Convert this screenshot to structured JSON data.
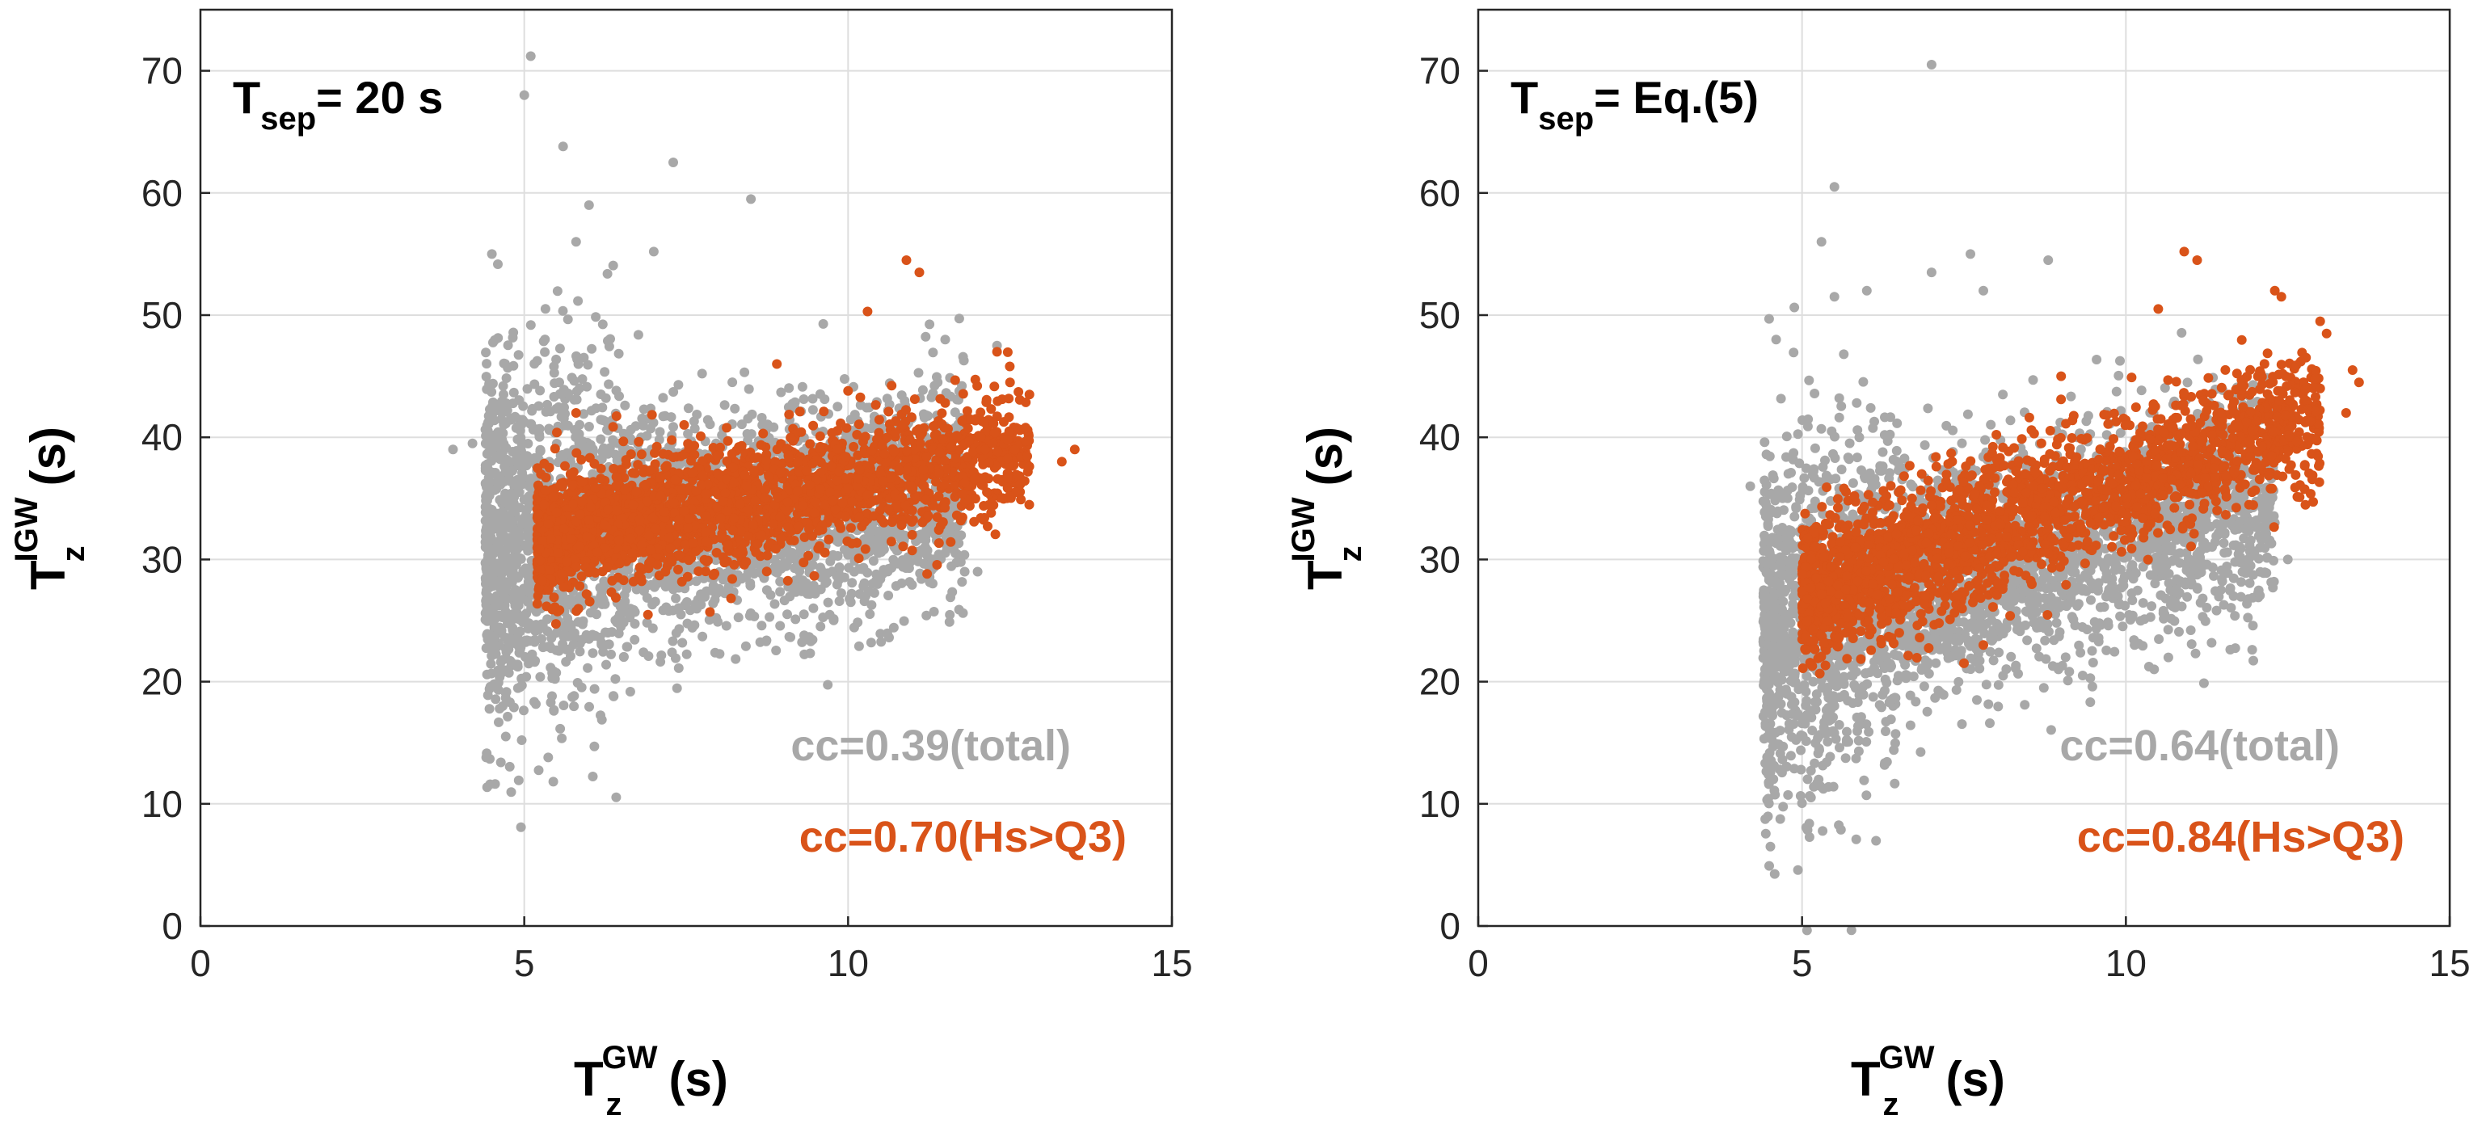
{
  "colors": {
    "total": "#a8a8a8",
    "hs_gt_q3": "#d95319",
    "grid": "#dedede",
    "axis": "#262626"
  },
  "chart_data": [
    {
      "type": "scatter",
      "panel_label": {
        "main": "T",
        "sub": "sep",
        "rest": "= 20 s"
      },
      "xlabel": {
        "main": "T",
        "sub": "z",
        "sup": "GW",
        "unit": "(s)"
      },
      "ylabel": {
        "main": "T",
        "sub": "z",
        "sup": "IGW",
        "unit": "(s)"
      },
      "xlim": [
        0,
        15
      ],
      "ylim": [
        0,
        75
      ],
      "xticks": [
        0,
        5,
        10,
        15
      ],
      "yticks": [
        0,
        10,
        20,
        30,
        40,
        50,
        60,
        70
      ],
      "grid": true,
      "series": [
        {
          "name": "total",
          "cc_label": "cc=0.39(total)",
          "color": "#a8a8a8",
          "cloud": {
            "x_range": [
              4.4,
              11.8
            ],
            "center_slope": 0.62,
            "center_x": 5.0,
            "center_y": 31.5,
            "y_spread": 4.5
          },
          "outliers": [
            [
              5.1,
              71.2
            ],
            [
              5.0,
              68.0
            ],
            [
              5.6,
              63.8
            ],
            [
              7.3,
              62.5
            ],
            [
              6.0,
              59.0
            ],
            [
              8.5,
              59.5
            ],
            [
              4.5,
              55.0
            ],
            [
              5.8,
              56.0
            ],
            [
              7.0,
              55.2
            ],
            [
              4.2,
              39.5
            ],
            [
              3.9,
              39.0
            ],
            [
              6.0,
              23.5
            ],
            [
              5.5,
              24.0
            ],
            [
              12.0,
              29.0
            ],
            [
              11.8,
              29.0
            ],
            [
              12.3,
              47.5
            ],
            [
              11.5,
              48.0
            ]
          ]
        },
        {
          "name": "Hs>Q3",
          "cc_label": "cc=0.70(Hs>Q3)",
          "color": "#d95319",
          "cloud": {
            "x_range": [
              5.2,
              12.8
            ],
            "center_slope": 0.95,
            "center_x": 5.5,
            "center_y": 32.0,
            "y_spread": 2.5
          },
          "outliers": [
            [
              10.9,
              54.5
            ],
            [
              11.1,
              53.5
            ],
            [
              10.3,
              50.3
            ],
            [
              8.9,
              46.0
            ],
            [
              12.3,
              47.0
            ],
            [
              13.5,
              39.0
            ],
            [
              13.3,
              38.0
            ],
            [
              5.8,
              42.0
            ],
            [
              6.8,
              28.5
            ],
            [
              10.0,
              43.8
            ],
            [
              12.8,
              43.5
            ],
            [
              12.5,
              44.5
            ]
          ]
        }
      ]
    },
    {
      "type": "scatter",
      "panel_label": {
        "main": "T",
        "sub": "sep",
        "rest": "= Eq.(5)"
      },
      "xlabel": {
        "main": "T",
        "sub": "z",
        "sup": "GW",
        "unit": "(s)"
      },
      "ylabel": {
        "main": "T",
        "sub": "z",
        "sup": "IGW",
        "unit": "(s)"
      },
      "xlim": [
        0,
        15
      ],
      "ylim": [
        0,
        75
      ],
      "xticks": [
        0,
        5,
        10,
        15
      ],
      "yticks": [
        0,
        10,
        20,
        30,
        40,
        50,
        60,
        70
      ],
      "grid": true,
      "series": [
        {
          "name": "total",
          "cc_label": "cc=0.64(total)",
          "color": "#a8a8a8",
          "cloud": {
            "x_range": [
              4.4,
              12.3
            ],
            "center_slope": 1.4,
            "center_x": 5.0,
            "center_y": 25.0,
            "y_spread": 4.5
          },
          "outliers": [
            [
              7.0,
              70.5
            ],
            [
              5.5,
              60.5
            ],
            [
              5.3,
              56.0
            ],
            [
              6.0,
              52.0
            ],
            [
              5.5,
              51.5
            ],
            [
              7.6,
              55.0
            ],
            [
              7.0,
              53.5
            ],
            [
              7.8,
              52.0
            ],
            [
              8.8,
              54.5
            ],
            [
              4.6,
              48.0
            ],
            [
              4.2,
              36.0
            ],
            [
              5.5,
              18.0
            ],
            [
              7.7,
              18.5
            ],
            [
              12.5,
              30.0
            ],
            [
              12.3,
              33.0
            ],
            [
              8.1,
              43.5
            ]
          ]
        },
        {
          "name": "Hs>Q3",
          "cc_label": "cc=0.84(Hs>Q3)",
          "color": "#d95319",
          "cloud": {
            "x_range": [
              5.0,
              13.0
            ],
            "center_slope": 1.85,
            "center_x": 5.2,
            "center_y": 27.5,
            "y_spread": 2.8
          },
          "outliers": [
            [
              10.9,
              55.2
            ],
            [
              11.1,
              54.5
            ],
            [
              12.3,
              52.0
            ],
            [
              12.4,
              51.5
            ],
            [
              10.5,
              50.5
            ],
            [
              13.0,
              49.5
            ],
            [
              13.1,
              48.5
            ],
            [
              13.6,
              44.5
            ],
            [
              13.4,
              42.0
            ],
            [
              13.5,
              45.5
            ],
            [
              7.8,
              23.0
            ],
            [
              7.5,
              21.5
            ],
            [
              6.5,
              24.0
            ],
            [
              9.0,
              45.0
            ]
          ]
        }
      ]
    }
  ]
}
